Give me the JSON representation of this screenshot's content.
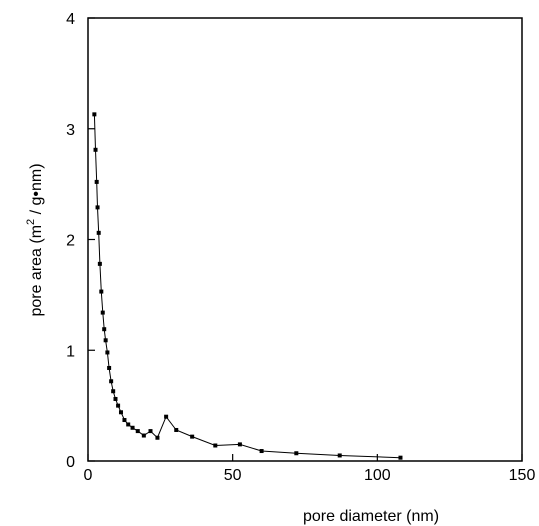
{
  "chart_data": {
    "type": "line",
    "xlabel": "pore diameter (nm)",
    "ylabel": {
      "prefix": "pore area (m",
      "superscript": "2",
      "suffix": " / g•nm)"
    },
    "xlim": [
      0,
      150
    ],
    "ylim": [
      0,
      4
    ],
    "xticks": [
      "0",
      "50",
      "100",
      "150"
    ],
    "yticks": [
      "0",
      "1",
      "2",
      "3",
      "4"
    ],
    "grid": false,
    "legend": "none",
    "marker": "square",
    "color": "#000000",
    "series": [
      {
        "x": [
          2.2,
          2.6,
          3.0,
          3.3,
          3.7,
          4.1,
          4.6,
          5.1,
          5.6,
          6.1,
          6.7,
          7.3,
          8.0,
          8.7,
          9.5,
          10.4,
          11.4,
          12.6,
          13.9,
          15.4,
          17.2,
          19.3,
          21.6,
          24.0,
          27.0,
          30.5,
          36.0,
          44.0,
          52.5,
          60.0,
          72.0,
          87.0,
          108.0
        ],
        "y": [
          3.13,
          2.81,
          2.52,
          2.29,
          2.06,
          1.78,
          1.53,
          1.34,
          1.19,
          1.09,
          0.98,
          0.84,
          0.72,
          0.63,
          0.56,
          0.5,
          0.44,
          0.37,
          0.33,
          0.3,
          0.27,
          0.23,
          0.27,
          0.21,
          0.4,
          0.28,
          0.22,
          0.14,
          0.15,
          0.09,
          0.07,
          0.05,
          0.03
        ]
      }
    ]
  }
}
